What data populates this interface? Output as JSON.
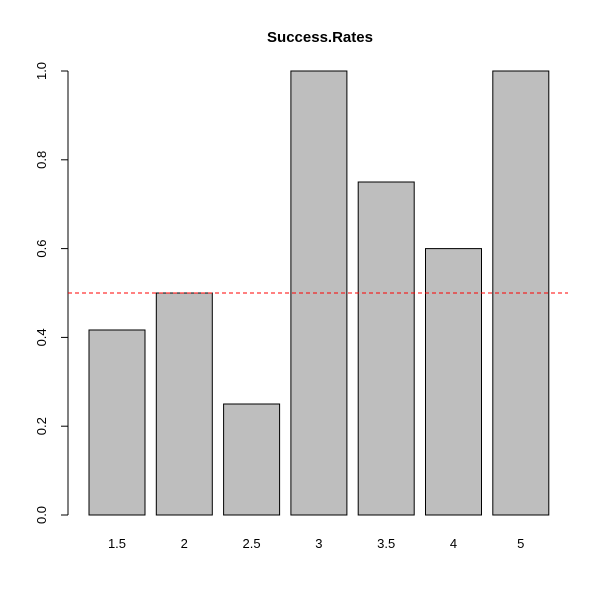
{
  "chart_data": {
    "type": "bar",
    "title": "Success.Rates",
    "xlabel": "",
    "ylabel": "",
    "categories": [
      "1.5",
      "2",
      "2.5",
      "3",
      "3.5",
      "4",
      "5"
    ],
    "values": [
      0.4167,
      0.5,
      0.25,
      1.0,
      0.75,
      0.6,
      1.0
    ],
    "ylim": [
      0,
      1
    ],
    "yticks": [
      "0.0",
      "0.2",
      "0.4",
      "0.6",
      "0.8",
      "1.0"
    ],
    "reference_line": {
      "y": 0.5,
      "color": "#ff0000",
      "style": "dashed"
    },
    "bar_color": "#bebebe",
    "bar_border_color": "#000000",
    "grid": false,
    "legend": "none"
  }
}
